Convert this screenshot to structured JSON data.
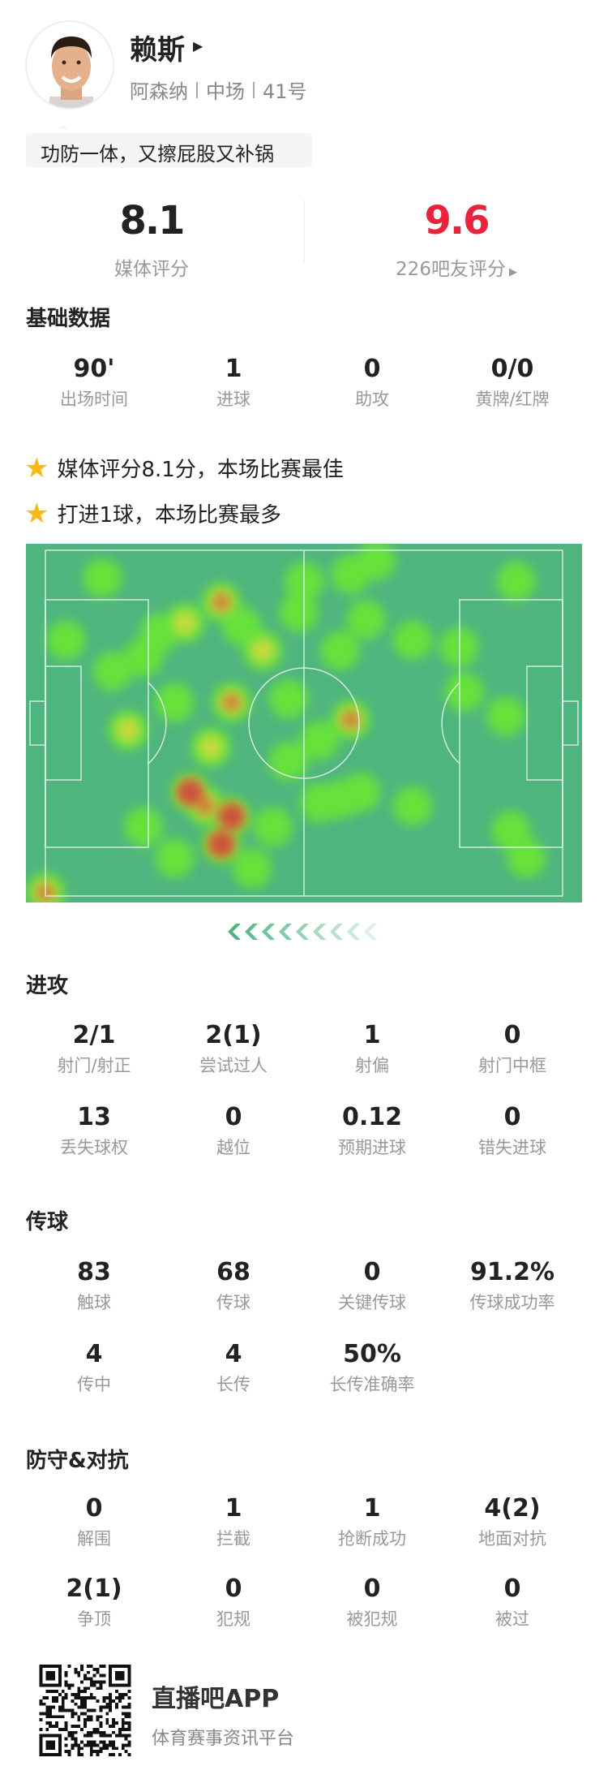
{
  "player": {
    "name": "赖斯",
    "team": "阿森纳",
    "position": "中场",
    "number": "41号",
    "tagline": "功防一体，又擦屁股又补锅"
  },
  "ratings": {
    "media": {
      "value": "8.1",
      "label": "媒体评分"
    },
    "fans": {
      "value": "9.6",
      "label": "226吧友评分",
      "color": "#e8233c"
    }
  },
  "basic": {
    "title": "基础数据",
    "stats": [
      {
        "value": "90'",
        "label": "出场时间"
      },
      {
        "value": "1",
        "label": "进球"
      },
      {
        "value": "0",
        "label": "助攻"
      },
      {
        "value": "0/0",
        "label": "黄牌/红牌"
      }
    ]
  },
  "highlights": [
    "媒体评分8.1分，本场比赛最佳",
    "打进1球，本场比赛最多"
  ],
  "heatmap": {
    "pitch_color": "#4fb57f",
    "attack_direction": "left",
    "points": [
      {
        "x": 11,
        "y": 8,
        "i": 1
      },
      {
        "x": 34,
        "y": 15,
        "i": 3
      },
      {
        "x": 27,
        "y": 21,
        "i": 2
      },
      {
        "x": 42,
        "y": 29,
        "i": 2.5
      },
      {
        "x": 4,
        "y": 26,
        "i": 1
      },
      {
        "x": 13,
        "y": 35,
        "i": 1
      },
      {
        "x": 19,
        "y": 31,
        "i": 1.3
      },
      {
        "x": 50,
        "y": 9,
        "i": 1
      },
      {
        "x": 59,
        "y": 7,
        "i": 1
      },
      {
        "x": 64,
        "y": 3,
        "i": 1
      },
      {
        "x": 62,
        "y": 20,
        "i": 1
      },
      {
        "x": 57,
        "y": 29,
        "i": 1.6
      },
      {
        "x": 71,
        "y": 26,
        "i": 1
      },
      {
        "x": 80,
        "y": 28,
        "i": 1
      },
      {
        "x": 91,
        "y": 9,
        "i": 1
      },
      {
        "x": 36,
        "y": 44,
        "i": 3
      },
      {
        "x": 47,
        "y": 43,
        "i": 1.8
      },
      {
        "x": 25,
        "y": 44,
        "i": 1
      },
      {
        "x": 16,
        "y": 52,
        "i": 2
      },
      {
        "x": 59,
        "y": 49,
        "i": 3
      },
      {
        "x": 53,
        "y": 55,
        "i": 1
      },
      {
        "x": 47,
        "y": 61,
        "i": 1
      },
      {
        "x": 81,
        "y": 41,
        "i": 1
      },
      {
        "x": 89,
        "y": 48,
        "i": 1
      },
      {
        "x": 32,
        "y": 57,
        "i": 2
      },
      {
        "x": 28,
        "y": 70,
        "i": 3.5
      },
      {
        "x": 36,
        "y": 77,
        "i": 3.5
      },
      {
        "x": 34,
        "y": 85,
        "i": 3.5
      },
      {
        "x": 31,
        "y": 74,
        "i": 3
      },
      {
        "x": 19,
        "y": 80,
        "i": 1
      },
      {
        "x": 25,
        "y": 89,
        "i": 1.2
      },
      {
        "x": 40,
        "y": 92,
        "i": 1
      },
      {
        "x": 53,
        "y": 73,
        "i": 1.2
      },
      {
        "x": 61,
        "y": 70,
        "i": 1.3
      },
      {
        "x": 57,
        "y": 72,
        "i": 1.2
      },
      {
        "x": 71,
        "y": 74,
        "i": 1
      },
      {
        "x": 90,
        "y": 81,
        "i": 1
      },
      {
        "x": 93,
        "y": 89,
        "i": 1
      },
      {
        "x": 0,
        "y": 99,
        "i": 3
      },
      {
        "x": 44,
        "y": 80,
        "i": 1
      },
      {
        "x": 49,
        "y": 18,
        "i": 1.3
      },
      {
        "x": 22,
        "y": 24,
        "i": 1.4
      },
      {
        "x": 38,
        "y": 22,
        "i": 1.4
      }
    ]
  },
  "attack": {
    "title": "进攻",
    "stats": [
      {
        "value": "2/1",
        "label": "射门/射正"
      },
      {
        "value": "2(1)",
        "label": "尝试过人"
      },
      {
        "value": "1",
        "label": "射偏"
      },
      {
        "value": "0",
        "label": "射门中框"
      },
      {
        "value": "13",
        "label": "丢失球权"
      },
      {
        "value": "0",
        "label": "越位"
      },
      {
        "value": "0.12",
        "label": "预期进球"
      },
      {
        "value": "0",
        "label": "错失进球"
      }
    ]
  },
  "passing": {
    "title": "传球",
    "stats": [
      {
        "value": "83",
        "label": "触球"
      },
      {
        "value": "68",
        "label": "传球"
      },
      {
        "value": "0",
        "label": "关键传球"
      },
      {
        "value": "91.2%",
        "label": "传球成功率"
      },
      {
        "value": "4",
        "label": "传中"
      },
      {
        "value": "4",
        "label": "长传"
      },
      {
        "value": "50%",
        "label": "长传准确率"
      }
    ]
  },
  "defense": {
    "title": "防守&对抗",
    "stats": [
      {
        "value": "0",
        "label": "解围"
      },
      {
        "value": "1",
        "label": "拦截"
      },
      {
        "value": "1",
        "label": "抢断成功"
      },
      {
        "value": "4(2)",
        "label": "地面对抗"
      },
      {
        "value": "2(1)",
        "label": "争顶"
      },
      {
        "value": "0",
        "label": "犯规"
      },
      {
        "value": "0",
        "label": "被犯规"
      },
      {
        "value": "0",
        "label": "被过"
      }
    ]
  },
  "footer": {
    "app_name": "直播吧APP",
    "app_subtitle": "体育赛事资讯平台"
  }
}
